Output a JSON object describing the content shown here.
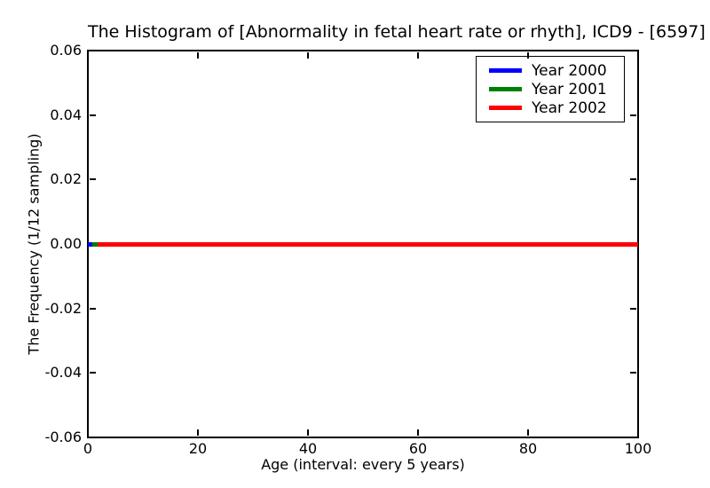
{
  "chart_data": {
    "type": "line",
    "title": "The Histogram of [Abnormality in fetal heart rate or rhyth], ICD9 - [6597]",
    "xlabel": "Age (interval: every 5 years)",
    "ylabel": "The Frequency (1/12 sampling)",
    "xlim": [
      0,
      100
    ],
    "ylim": [
      -0.06,
      0.06
    ],
    "xticks": [
      0,
      20,
      40,
      60,
      80,
      100
    ],
    "xtick_labels": [
      "0",
      "20",
      "40",
      "60",
      "80",
      "100"
    ],
    "yticks": [
      0.06,
      0.04,
      0.02,
      0,
      -0.02,
      -0.04,
      -0.06
    ],
    "ytick_labels": [
      "0.06",
      "0.04",
      "0.02",
      "0.00",
      "-0.02",
      "-0.04",
      "-0.06"
    ],
    "grid": false,
    "legend_position": "upper right",
    "series": [
      {
        "name": "Year 2000",
        "color": "#0000ff",
        "x": [
          0,
          100
        ],
        "y": [
          0,
          0
        ]
      },
      {
        "name": "Year 2001",
        "color": "#008000",
        "x": [
          0,
          100
        ],
        "y": [
          0,
          0
        ]
      },
      {
        "name": "Year 2002",
        "color": "#ff0000",
        "x": [
          0,
          100
        ],
        "y": [
          0,
          0
        ]
      }
    ],
    "zero_line_segments": [
      {
        "color": "#0000ff",
        "x0": 0.0,
        "x1": 0.8
      },
      {
        "color": "#008000",
        "x0": 0.8,
        "x1": 1.8
      },
      {
        "color": "#ff0000",
        "x0": 1.8,
        "x1": 100
      }
    ],
    "axis_color": "#000000",
    "background_color": "#ffffff"
  }
}
